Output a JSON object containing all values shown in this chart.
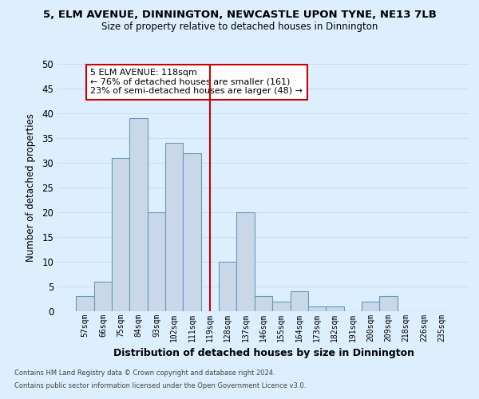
{
  "title1": "5, ELM AVENUE, DINNINGTON, NEWCASTLE UPON TYNE, NE13 7LB",
  "title2": "Size of property relative to detached houses in Dinnington",
  "xlabel": "Distribution of detached houses by size in Dinnington",
  "ylabel": "Number of detached properties",
  "bin_labels": [
    "57sqm",
    "66sqm",
    "75sqm",
    "84sqm",
    "93sqm",
    "102sqm",
    "111sqm",
    "119sqm",
    "128sqm",
    "137sqm",
    "146sqm",
    "155sqm",
    "164sqm",
    "173sqm",
    "182sqm",
    "191sqm",
    "200sqm",
    "209sqm",
    "218sqm",
    "226sqm",
    "235sqm"
  ],
  "bar_values": [
    3,
    6,
    31,
    39,
    20,
    34,
    32,
    0,
    10,
    20,
    3,
    2,
    4,
    1,
    1,
    0,
    2,
    3,
    0,
    0,
    0
  ],
  "bar_color": "#c8d8e8",
  "bar_edge_color": "#6699bb",
  "vline_x_index": 7,
  "vline_color": "#cc0000",
  "annotation_text": "5 ELM AVENUE: 118sqm\n← 76% of detached houses are smaller (161)\n23% of semi-detached houses are larger (48) →",
  "annotation_box_color": "#ffffff",
  "annotation_box_edge": "#cc0000",
  "ylim": [
    0,
    50
  ],
  "yticks": [
    0,
    5,
    10,
    15,
    20,
    25,
    30,
    35,
    40,
    45,
    50
  ],
  "grid_color": "#ccddee",
  "bg_color": "#ddeeff",
  "footnote1": "Contains HM Land Registry data © Crown copyright and database right 2024.",
  "footnote2": "Contains public sector information licensed under the Open Government Licence v3.0."
}
